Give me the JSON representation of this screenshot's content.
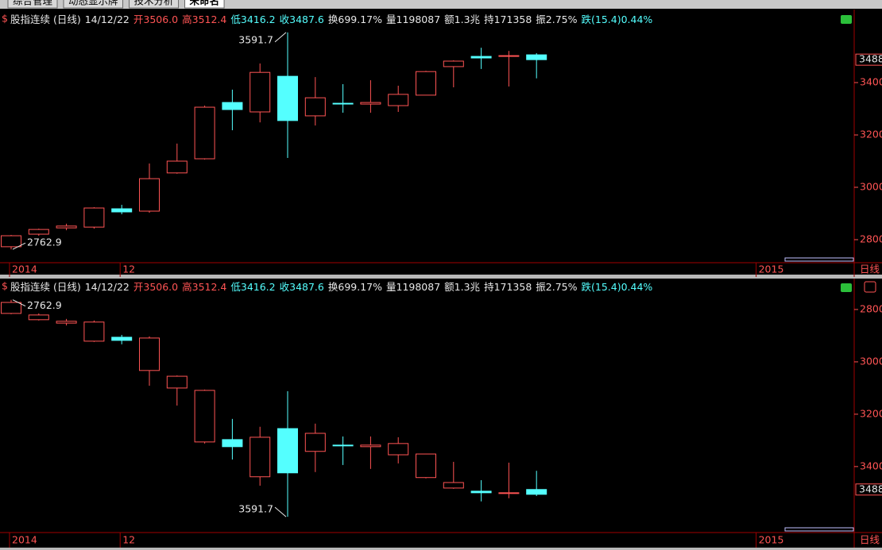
{
  "tabs": [
    "综合管理",
    "动态显示牌",
    "技术分析",
    "未命名"
  ],
  "chart_data": {
    "type": "candlestick",
    "symbol_icon": "$",
    "header": [
      {
        "text": "股指连续 (日线)",
        "color": "#e8e8e8"
      },
      {
        "text": "14/12/22",
        "color": "#e8e8e8"
      },
      {
        "text": "开3506.0",
        "color": "#ff5454"
      },
      {
        "text": "高3512.4",
        "color": "#ff5454"
      },
      {
        "text": "低3416.2",
        "color": "#54ffff"
      },
      {
        "text": "收3487.6",
        "color": "#54ffff"
      },
      {
        "text": "换699.17%",
        "color": "#e8e8e8"
      },
      {
        "text": "量1198087",
        "color": "#e8e8e8"
      },
      {
        "text": "额1.3兆",
        "color": "#e8e8e8"
      },
      {
        "text": "持171358",
        "color": "#e8e8e8"
      },
      {
        "text": "振2.75%",
        "color": "#e8e8e8"
      },
      {
        "text": "跌(15.4)0.44%",
        "color": "#54ffff"
      }
    ],
    "x_labels": [
      {
        "label": "2014",
        "index": 0
      },
      {
        "label": "12",
        "index": 4
      },
      {
        "label": "2015",
        "index": 27
      }
    ],
    "open": [
      2773,
      2821,
      2845,
      2848,
      2918,
      2909,
      3055,
      3109,
      3324,
      3288,
      3424,
      3273,
      3321,
      3318,
      3312,
      3352,
      3461,
      3500,
      3500,
      3506.0
    ],
    "high": [
      2818,
      2842,
      2861,
      2924,
      2933,
      3091,
      3167,
      3312,
      3373,
      3473,
      3591.7,
      3421,
      3394,
      3409,
      3388,
      3445,
      3485,
      3533,
      3521,
      3512.4
    ],
    "low": [
      2762.9,
      2815,
      2836,
      2842,
      2897,
      2903,
      3052,
      3106,
      3218,
      3248,
      3112,
      3236,
      3285,
      3285,
      3288,
      3352,
      3382,
      3452,
      3385,
      3416.2
    ],
    "close": [
      2815,
      2839,
      2852,
      2921,
      2906,
      3033,
      3100,
      3306,
      3297,
      3439,
      3255,
      3342,
      3318,
      3324,
      3355,
      3442,
      3482,
      3494,
      3503,
      3487.6
    ],
    "up_color": "#ff5454",
    "down_color": "#54ffff",
    "yticks": [
      2800,
      3000,
      3200,
      3400
    ],
    "last_label": "3488",
    "period_label": "日线",
    "panels": [
      {
        "ylim": [
          2712,
          3673
        ],
        "inverted": false
      },
      {
        "ylim": [
          2691,
          3652
        ],
        "inverted": true
      }
    ]
  }
}
